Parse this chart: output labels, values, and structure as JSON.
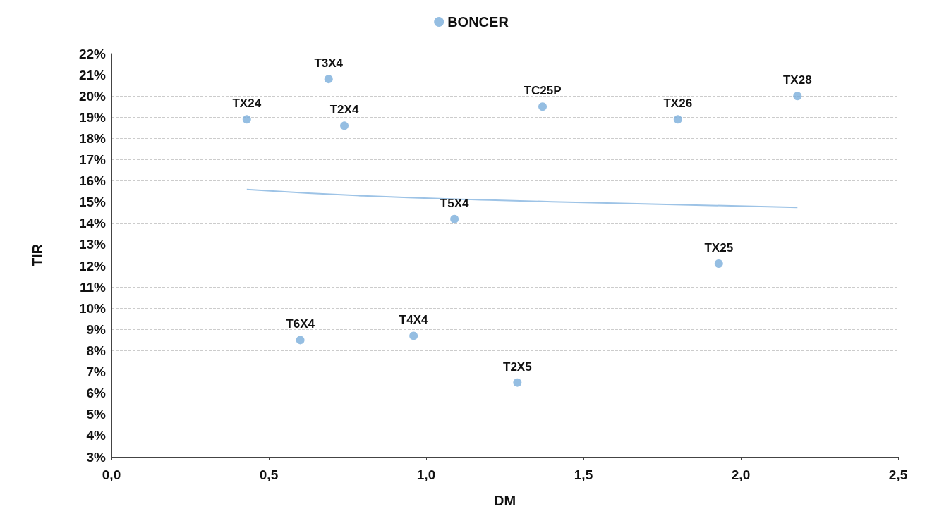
{
  "chart_data": {
    "type": "scatter",
    "xlabel": "DM",
    "ylabel": "TIR",
    "legend": "top",
    "grid": "y",
    "xlim": [
      0,
      2.5
    ],
    "xticks": [
      {
        "value": 0,
        "label": "0,0"
      },
      {
        "value": 0.5,
        "label": "0,5"
      },
      {
        "value": 1,
        "label": "1,0"
      },
      {
        "value": 1.5,
        "label": "1,5"
      },
      {
        "value": 2,
        "label": "2,0"
      },
      {
        "value": 2.5,
        "label": "2,5"
      }
    ],
    "ylim": [
      3,
      22
    ],
    "yticks": [
      {
        "value": 3,
        "label": "3%"
      },
      {
        "value": 4,
        "label": "4%"
      },
      {
        "value": 5,
        "label": "5%"
      },
      {
        "value": 6,
        "label": "6%"
      },
      {
        "value": 7,
        "label": "7%"
      },
      {
        "value": 8,
        "label": "8%"
      },
      {
        "value": 9,
        "label": "9%"
      },
      {
        "value": 10,
        "label": "10%"
      },
      {
        "value": 11,
        "label": "11%"
      },
      {
        "value": 12,
        "label": "12%"
      },
      {
        "value": 13,
        "label": "13%"
      },
      {
        "value": 14,
        "label": "14%"
      },
      {
        "value": 15,
        "label": "15%"
      },
      {
        "value": 16,
        "label": "16%"
      },
      {
        "value": 17,
        "label": "17%"
      },
      {
        "value": 18,
        "label": "18%"
      },
      {
        "value": 19,
        "label": "19%"
      },
      {
        "value": 20,
        "label": "20%"
      },
      {
        "value": 21,
        "label": "21%"
      },
      {
        "value": 22,
        "label": "22%"
      }
    ],
    "series": [
      {
        "name": "BONCER",
        "color": "#7aaedb",
        "marker": "circle",
        "x": [
          0.69,
          0.43,
          0.74,
          1.37,
          1.8,
          2.18,
          1.09,
          1.93,
          0.6,
          0.96,
          1.29
        ],
        "values": [
          20.8,
          18.9,
          18.6,
          19.5,
          18.9,
          20.0,
          14.2,
          12.1,
          8.5,
          8.7,
          6.5
        ]
      },
      {
        "type": "line",
        "color": "#9dc3e6",
        "marker": "none",
        "x": [
          0.43,
          0.8,
          1.2,
          1.6,
          2.18
        ],
        "values": [
          15.6,
          15.3,
          15.1,
          14.95,
          14.75
        ]
      }
    ],
    "annotations": [
      {
        "text": "T3X4",
        "x": 0.69,
        "y": 20.8
      },
      {
        "text": "TX24",
        "x": 0.43,
        "y": 18.9
      },
      {
        "text": "T2X4",
        "x": 0.74,
        "y": 18.6
      },
      {
        "text": "TC25P",
        "x": 1.37,
        "y": 19.5
      },
      {
        "text": "TX26",
        "x": 1.8,
        "y": 18.9
      },
      {
        "text": "TX28",
        "x": 2.18,
        "y": 20.0
      },
      {
        "text": "T5X4",
        "x": 1.09,
        "y": 14.2
      },
      {
        "text": "TX25",
        "x": 1.93,
        "y": 12.1
      },
      {
        "text": "T6X4",
        "x": 0.6,
        "y": 8.5
      },
      {
        "text": "T4X4",
        "x": 0.96,
        "y": 8.7
      },
      {
        "text": "T2X5",
        "x": 1.29,
        "y": 6.5
      }
    ]
  }
}
